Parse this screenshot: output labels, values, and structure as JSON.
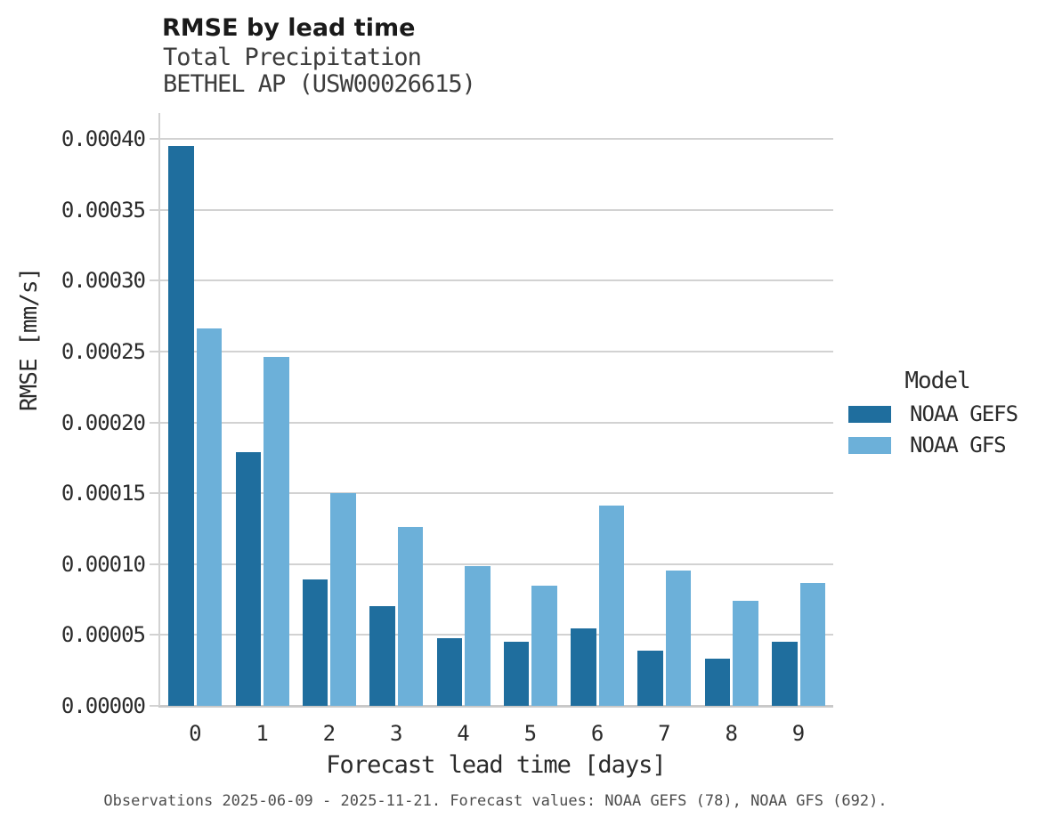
{
  "chart_data": {
    "type": "bar",
    "title": "RMSE by lead time",
    "subtitle1": "Total Precipitation",
    "subtitle2": "BETHEL AP (USW00026615)",
    "xlabel": "Forecast lead time [days]",
    "ylabel": "RMSE [mm/s]",
    "legend_title": "Model",
    "legend_position": "right",
    "grid": true,
    "categories": [
      "0",
      "1",
      "2",
      "3",
      "4",
      "5",
      "6",
      "7",
      "8",
      "9"
    ],
    "series": [
      {
        "name": "NOAA GEFS",
        "color": "#1f6e9e",
        "values": [
          0.000395,
          0.000179,
          8.93e-05,
          7.05e-05,
          4.75e-05,
          4.55e-05,
          5.45e-05,
          3.9e-05,
          3.35e-05,
          4.55e-05
        ]
      },
      {
        "name": "NOAA GFS",
        "color": "#6cb0d9",
        "values": [
          0.000266,
          0.000246,
          0.00015,
          0.000126,
          9.85e-05,
          8.5e-05,
          0.000141,
          9.55e-05,
          7.4e-05,
          8.65e-05
        ]
      }
    ],
    "ylim": [
      0,
      0.00042
    ],
    "yticks": [
      {
        "value": 0.0,
        "label": "0.00000"
      },
      {
        "value": 5e-05,
        "label": "0.00005"
      },
      {
        "value": 0.0001,
        "label": "0.00010"
      },
      {
        "value": 0.00015,
        "label": "0.00015"
      },
      {
        "value": 0.0002,
        "label": "0.00020"
      },
      {
        "value": 0.00025,
        "label": "0.00025"
      },
      {
        "value": 0.0003,
        "label": "0.00030"
      },
      {
        "value": 0.00035,
        "label": "0.00035"
      },
      {
        "value": 0.0004,
        "label": "0.00040"
      }
    ],
    "caption": "Observations 2025-06-09 - 2025-11-21. Forecast values: NOAA GEFS (78), NOAA GFS (692)."
  },
  "colors": {
    "background": "#ffffff",
    "grid": "#d2d2d2",
    "axis": "#c9c9c9",
    "title": "#1a1a1a",
    "subtitle": "#3d3d3d",
    "text": "#2b2b2b",
    "caption": "#4d4d4d",
    "series_dark": "#1f6e9e",
    "series_light": "#6cb0d9"
  }
}
